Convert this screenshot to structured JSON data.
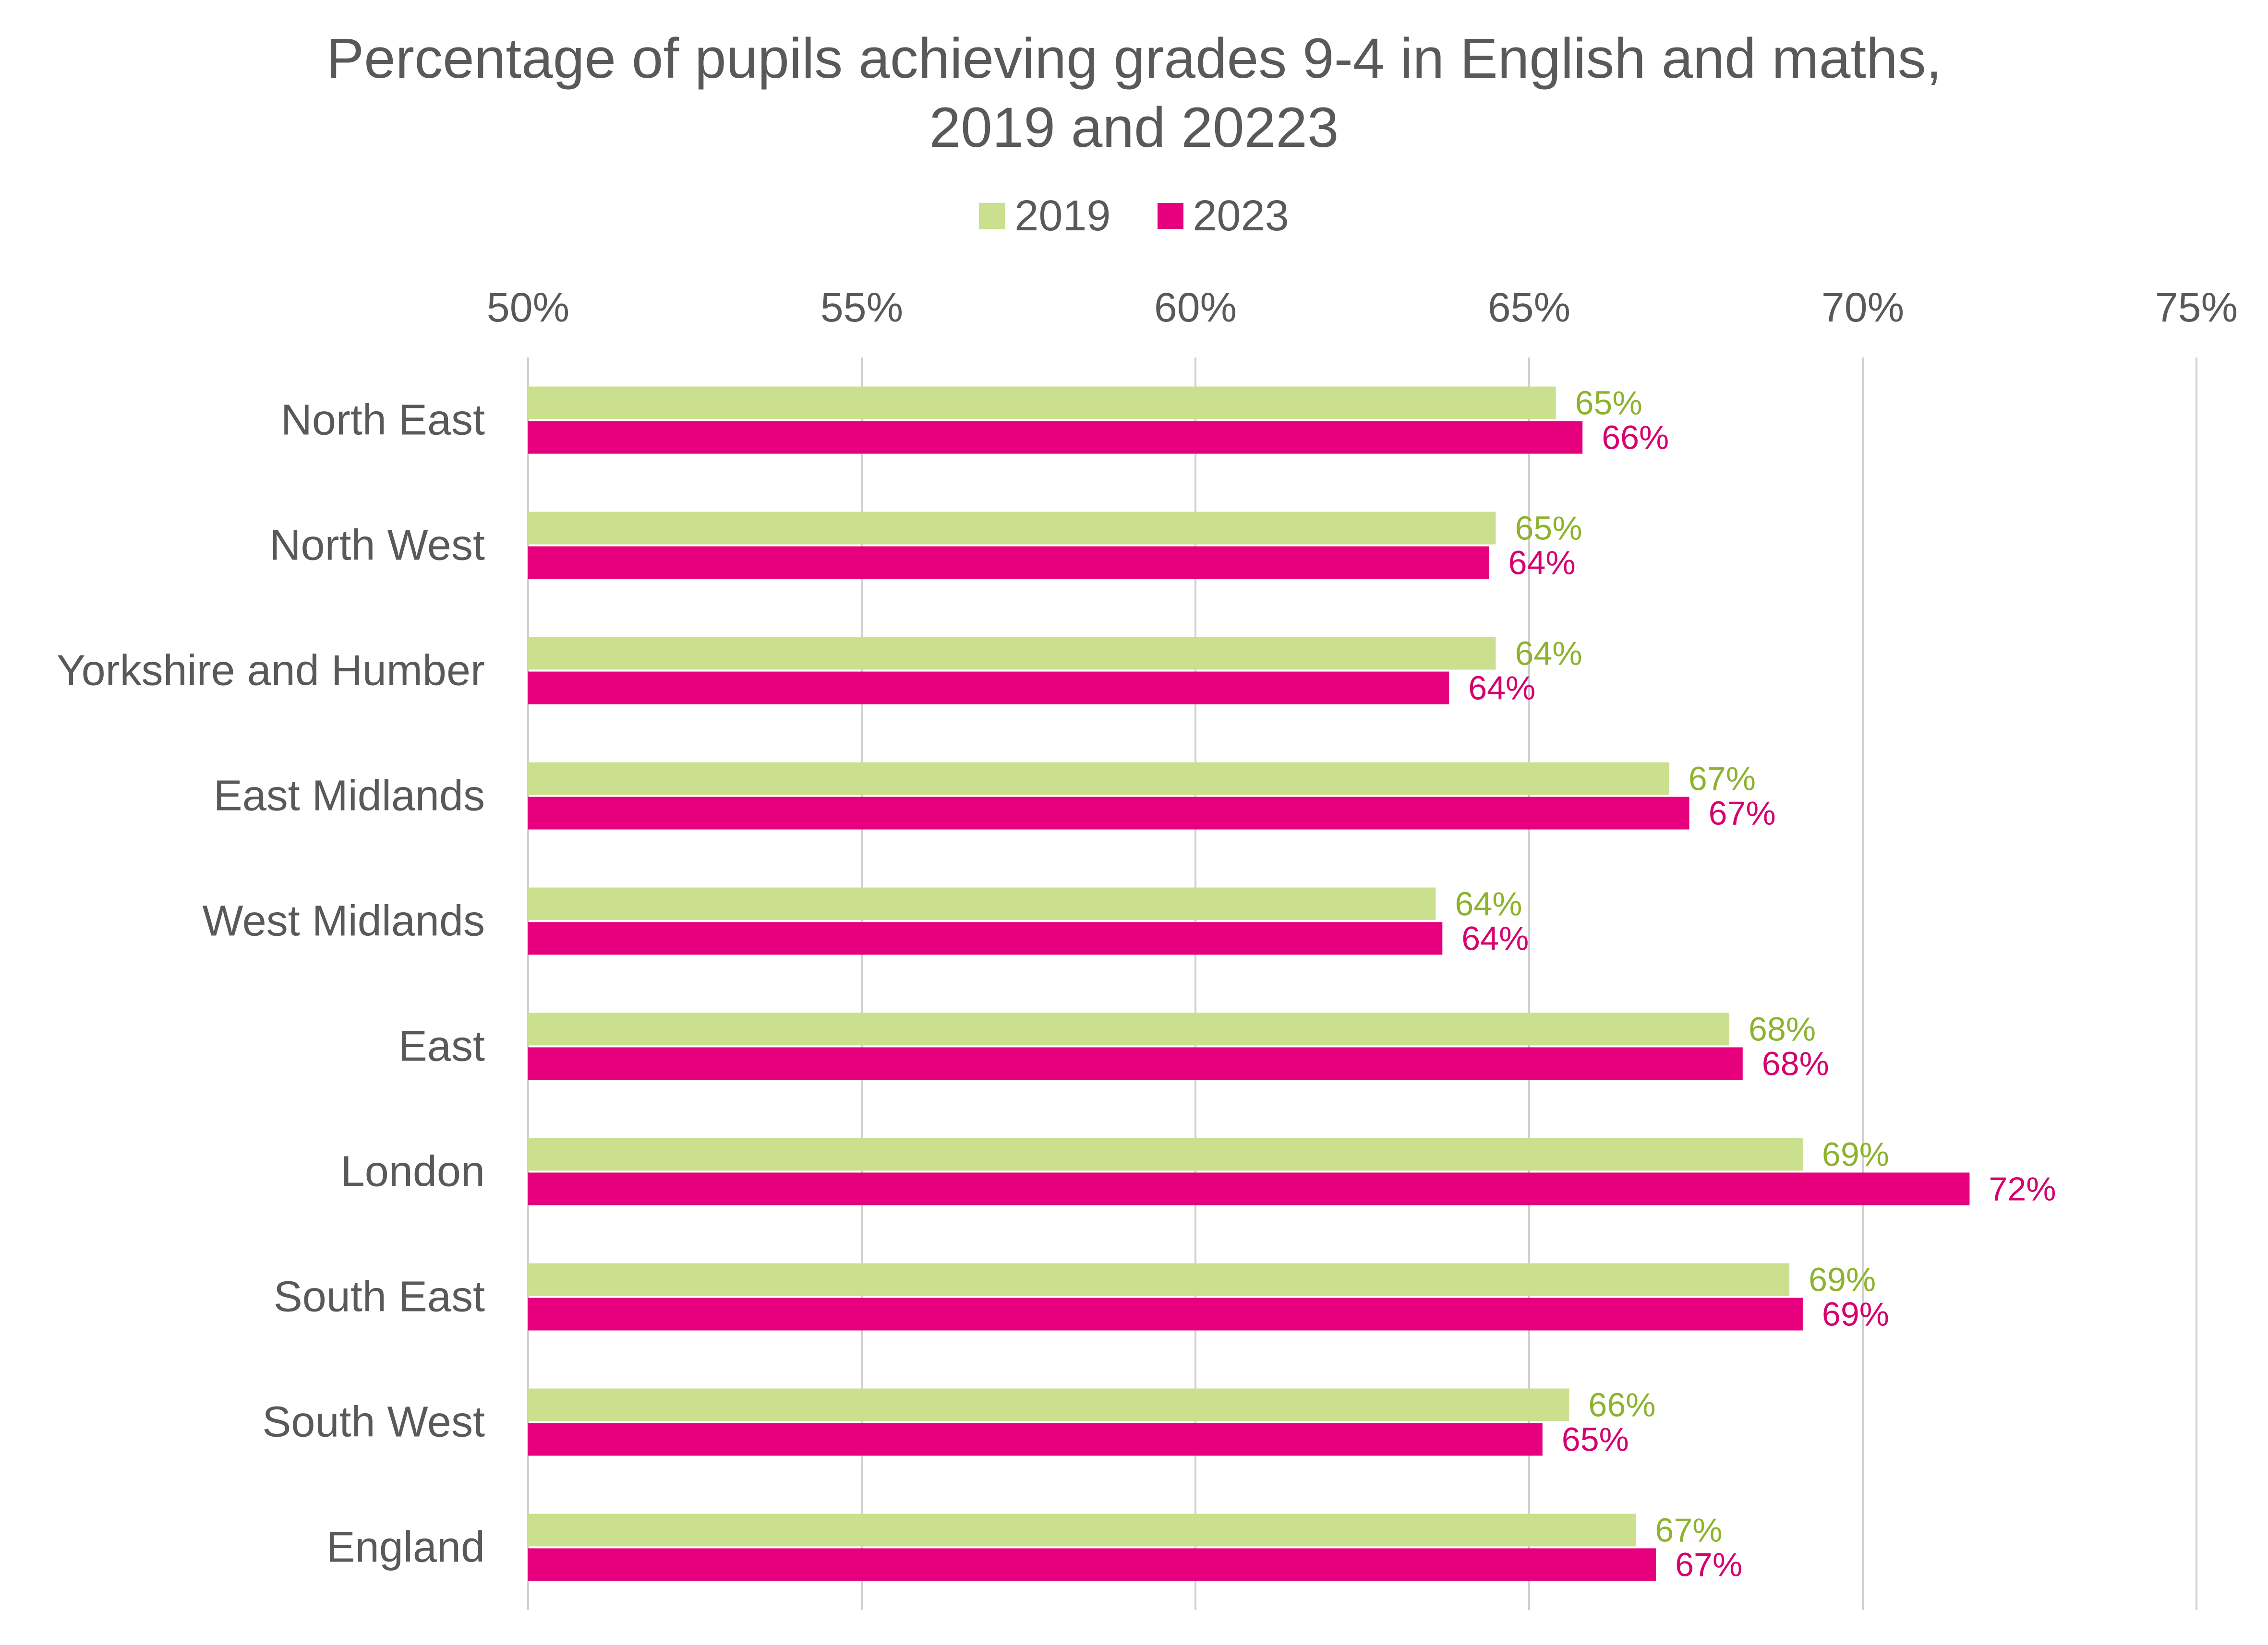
{
  "chart_data": {
    "type": "bar",
    "orientation": "horizontal",
    "title": "Percentage of pupils achieving grades 9-4 in English and maths, 2019 and 20223",
    "title_lines": [
      "Percentage of pupils achieving grades 9-4 in English and maths,",
      "2019 and 20223"
    ],
    "categories": [
      "North East",
      "North West",
      "Yorkshire and Humber",
      "East Midlands",
      "West Midlands",
      "East",
      "London",
      "South East",
      "South West",
      "England"
    ],
    "series": [
      {
        "name": "2019",
        "color": "#cbe08f",
        "label_color": "#8db32e",
        "values": [
          65.4,
          64.5,
          64.5,
          67.1,
          63.6,
          68.0,
          69.1,
          68.9,
          65.6,
          66.6
        ],
        "labels": [
          "65%",
          "65%",
          "64%",
          "67%",
          "64%",
          "68%",
          "69%",
          "69%",
          "66%",
          "67%"
        ]
      },
      {
        "name": "2023",
        "color": "#e6007e",
        "label_color": "#d6006f",
        "values": [
          65.8,
          64.4,
          63.8,
          67.4,
          63.7,
          68.2,
          71.6,
          69.1,
          65.2,
          66.9
        ],
        "labels": [
          "66%",
          "64%",
          "64%",
          "67%",
          "64%",
          "68%",
          "72%",
          "69%",
          "65%",
          "67%"
        ]
      }
    ],
    "xlim": [
      50,
      75
    ],
    "xticks": [
      50,
      55,
      60,
      65,
      70,
      75
    ],
    "xtick_labels": [
      "50%",
      "55%",
      "60%",
      "65%",
      "70%",
      "75%"
    ],
    "axis_position": "top",
    "legend_position": "top",
    "grid": "vertical",
    "xlabel": "",
    "ylabel": ""
  }
}
